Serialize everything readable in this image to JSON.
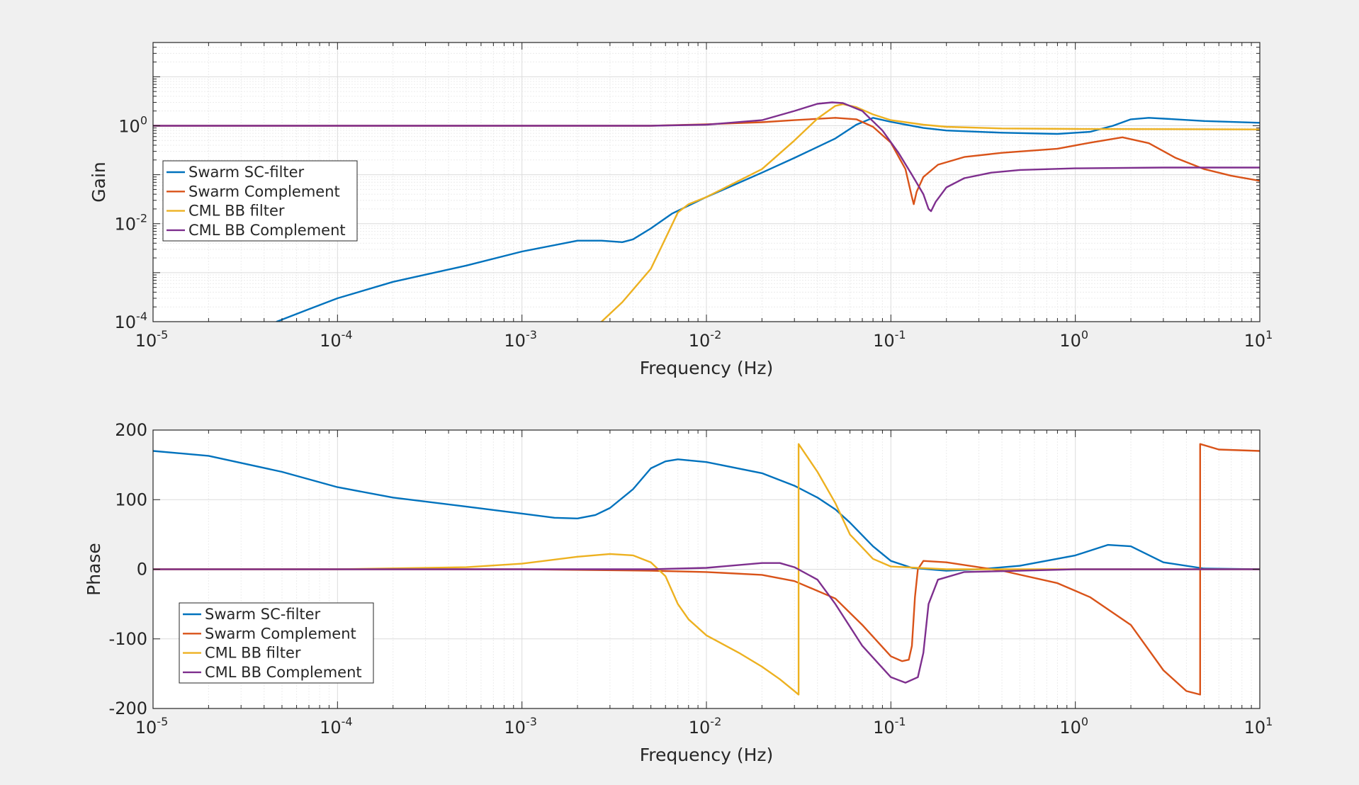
{
  "figure": {
    "background": "#f0f0f0"
  },
  "chart_data": [
    {
      "type": "line",
      "name": "gain",
      "xscale": "log",
      "yscale": "log",
      "xlim": [
        1e-05,
        10
      ],
      "ylim": [
        0.0001,
        50
      ],
      "xlabel": "Frequency (Hz)",
      "ylabel": "Gain",
      "xticks": [
        {
          "base": "10",
          "exp": "-5"
        },
        {
          "base": "10",
          "exp": "-4"
        },
        {
          "base": "10",
          "exp": "-3"
        },
        {
          "base": "10",
          "exp": "-2"
        },
        {
          "base": "10",
          "exp": "-1"
        },
        {
          "base": "10",
          "exp": "0"
        },
        {
          "base": "10",
          "exp": "1"
        }
      ],
      "yticks": [
        {
          "value": 0.0001,
          "base": "10",
          "exp": "-4"
        },
        {
          "value": 0.01,
          "base": "10",
          "exp": "-2"
        },
        {
          "value": 1,
          "base": "10",
          "exp": "0"
        }
      ],
      "grid": true,
      "minor_grid": true,
      "legend": {
        "position": "middle-left"
      },
      "series": [
        {
          "name": "Swarm SC-filter",
          "color": "#0072bd",
          "points": [
            [
              4.68e-05,
              0.0001
            ],
            [
              7e-05,
              0.00018
            ],
            [
              0.0001,
              0.0003
            ],
            [
              0.0002,
              0.00065
            ],
            [
              0.0005,
              0.0014
            ],
            [
              0.001,
              0.0027
            ],
            [
              0.002,
              0.0045
            ],
            [
              0.0027,
              0.0045
            ],
            [
              0.0035,
              0.0042
            ],
            [
              0.004,
              0.0048
            ],
            [
              0.005,
              0.008
            ],
            [
              0.0065,
              0.016
            ],
            [
              0.01,
              0.035
            ],
            [
              0.02,
              0.11
            ],
            [
              0.03,
              0.22
            ],
            [
              0.05,
              0.55
            ],
            [
              0.065,
              1.05
            ],
            [
              0.08,
              1.45
            ],
            [
              0.1,
              1.2
            ],
            [
              0.15,
              0.9
            ],
            [
              0.2,
              0.8
            ],
            [
              0.4,
              0.72
            ],
            [
              0.8,
              0.68
            ],
            [
              1.2,
              0.75
            ],
            [
              1.6,
              1.0
            ],
            [
              2.0,
              1.35
            ],
            [
              2.5,
              1.45
            ],
            [
              3.5,
              1.35
            ],
            [
              5,
              1.25
            ],
            [
              10,
              1.15
            ]
          ]
        },
        {
          "name": "Swarm Complement",
          "color": "#d95319",
          "points": [
            [
              1e-05,
              1
            ],
            [
              0.001,
              1
            ],
            [
              0.005,
              1.0
            ],
            [
              0.01,
              1.07
            ],
            [
              0.02,
              1.18
            ],
            [
              0.03,
              1.3
            ],
            [
              0.05,
              1.45
            ],
            [
              0.065,
              1.35
            ],
            [
              0.08,
              0.95
            ],
            [
              0.1,
              0.45
            ],
            [
              0.12,
              0.13
            ],
            [
              0.13,
              0.035
            ],
            [
              0.133,
              0.025
            ],
            [
              0.138,
              0.045
            ],
            [
              0.15,
              0.09
            ],
            [
              0.18,
              0.16
            ],
            [
              0.25,
              0.23
            ],
            [
              0.4,
              0.28
            ],
            [
              0.8,
              0.34
            ],
            [
              1.2,
              0.45
            ],
            [
              1.8,
              0.58
            ],
            [
              2.5,
              0.44
            ],
            [
              3.5,
              0.22
            ],
            [
              5,
              0.13
            ],
            [
              7,
              0.095
            ],
            [
              10,
              0.075
            ]
          ]
        },
        {
          "name": "CML BB filter",
          "color": "#edb120",
          "points": [
            [
              0.0027,
              0.0001
            ],
            [
              0.0035,
              0.00025
            ],
            [
              0.005,
              0.0012
            ],
            [
              0.006,
              0.005
            ],
            [
              0.007,
              0.017
            ],
            [
              0.008,
              0.025
            ],
            [
              0.01,
              0.035
            ],
            [
              0.02,
              0.13
            ],
            [
              0.03,
              0.5
            ],
            [
              0.04,
              1.4
            ],
            [
              0.05,
              2.55
            ],
            [
              0.055,
              2.75
            ],
            [
              0.065,
              2.4
            ],
            [
              0.08,
              1.7
            ],
            [
              0.1,
              1.3
            ],
            [
              0.15,
              1.05
            ],
            [
              0.2,
              0.95
            ],
            [
              0.4,
              0.88
            ],
            [
              1,
              0.86
            ],
            [
              10,
              0.84
            ]
          ]
        },
        {
          "name": "CML BB Complement",
          "color": "#7e2f8e",
          "points": [
            [
              1e-05,
              1
            ],
            [
              0.001,
              1
            ],
            [
              0.005,
              1.0
            ],
            [
              0.01,
              1.05
            ],
            [
              0.02,
              1.3
            ],
            [
              0.03,
              2.0
            ],
            [
              0.04,
              2.8
            ],
            [
              0.048,
              3.0
            ],
            [
              0.055,
              2.9
            ],
            [
              0.07,
              2.0
            ],
            [
              0.09,
              0.8
            ],
            [
              0.11,
              0.28
            ],
            [
              0.13,
              0.1
            ],
            [
              0.15,
              0.04
            ],
            [
              0.16,
              0.02
            ],
            [
              0.165,
              0.018
            ],
            [
              0.175,
              0.028
            ],
            [
              0.2,
              0.055
            ],
            [
              0.25,
              0.085
            ],
            [
              0.35,
              0.11
            ],
            [
              0.5,
              0.125
            ],
            [
              1,
              0.135
            ],
            [
              3,
              0.14
            ],
            [
              10,
              0.14
            ]
          ]
        }
      ]
    },
    {
      "type": "line",
      "name": "phase",
      "xscale": "log",
      "xlim": [
        1e-05,
        10
      ],
      "ylim": [
        -200,
        200
      ],
      "xlabel": "Frequency (Hz)",
      "ylabel": "Phase",
      "xticks": [
        {
          "base": "10",
          "exp": "-5"
        },
        {
          "base": "10",
          "exp": "-4"
        },
        {
          "base": "10",
          "exp": "-3"
        },
        {
          "base": "10",
          "exp": "-2"
        },
        {
          "base": "10",
          "exp": "-1"
        },
        {
          "base": "10",
          "exp": "0"
        },
        {
          "base": "10",
          "exp": "1"
        }
      ],
      "yticks": [
        {
          "value": -200,
          "label": "-200"
        },
        {
          "value": -100,
          "label": "-100"
        },
        {
          "value": 0,
          "label": "0"
        },
        {
          "value": 100,
          "label": "100"
        },
        {
          "value": 200,
          "label": "200"
        }
      ],
      "grid": true,
      "minor_grid": false,
      "legend": {
        "position": "bottom-left"
      },
      "series": [
        {
          "name": "Swarm SC-filter",
          "color": "#0072bd",
          "points": [
            [
              1e-05,
              170
            ],
            [
              2e-05,
              163
            ],
            [
              5e-05,
              140
            ],
            [
              0.0001,
              118
            ],
            [
              0.0002,
              103
            ],
            [
              0.0005,
              90
            ],
            [
              0.001,
              80
            ],
            [
              0.0015,
              74
            ],
            [
              0.002,
              73
            ],
            [
              0.0025,
              78
            ],
            [
              0.003,
              88
            ],
            [
              0.004,
              115
            ],
            [
              0.005,
              145
            ],
            [
              0.006,
              155
            ],
            [
              0.007,
              158
            ],
            [
              0.01,
              154
            ],
            [
              0.02,
              138
            ],
            [
              0.03,
              120
            ],
            [
              0.04,
              103
            ],
            [
              0.05,
              86
            ],
            [
              0.06,
              67
            ],
            [
              0.08,
              33
            ],
            [
              0.1,
              12
            ],
            [
              0.13,
              2
            ],
            [
              0.2,
              -2
            ],
            [
              0.3,
              0
            ],
            [
              0.5,
              5
            ],
            [
              1,
              20
            ],
            [
              1.5,
              35
            ],
            [
              2,
              33
            ],
            [
              3,
              10
            ],
            [
              5,
              1
            ],
            [
              10,
              0
            ]
          ]
        },
        {
          "name": "Swarm Complement",
          "color": "#d95319",
          "points": [
            [
              1e-05,
              0
            ],
            [
              0.001,
              0
            ],
            [
              0.005,
              -2
            ],
            [
              0.01,
              -4
            ],
            [
              0.02,
              -8
            ],
            [
              0.03,
              -17
            ],
            [
              0.05,
              -42
            ],
            [
              0.07,
              -80
            ],
            [
              0.1,
              -125
            ],
            [
              0.115,
              -132
            ],
            [
              0.125,
              -130
            ],
            [
              0.13,
              -110
            ],
            [
              0.135,
              -40
            ],
            [
              0.14,
              0
            ],
            [
              0.15,
              12
            ],
            [
              0.2,
              10
            ],
            [
              0.4,
              -2
            ],
            [
              0.8,
              -20
            ],
            [
              1.2,
              -40
            ],
            [
              2,
              -80
            ],
            [
              3,
              -145
            ],
            [
              4,
              -175
            ],
            [
              4.75,
              -180
            ],
            [
              4.75,
              180
            ],
            [
              6,
              172
            ],
            [
              10,
              170
            ]
          ]
        },
        {
          "name": "CML BB filter",
          "color": "#edb120",
          "points": [
            [
              1e-05,
              0
            ],
            [
              0.0001,
              0
            ],
            [
              0.0005,
              3
            ],
            [
              0.001,
              8
            ],
            [
              0.002,
              18
            ],
            [
              0.003,
              22
            ],
            [
              0.004,
              20
            ],
            [
              0.005,
              10
            ],
            [
              0.006,
              -10
            ],
            [
              0.007,
              -50
            ],
            [
              0.008,
              -72
            ],
            [
              0.01,
              -95
            ],
            [
              0.015,
              -120
            ],
            [
              0.02,
              -140
            ],
            [
              0.025,
              -158
            ],
            [
              0.03,
              -175
            ],
            [
              0.0316,
              -180
            ],
            [
              0.0316,
              180
            ],
            [
              0.04,
              140
            ],
            [
              0.05,
              95
            ],
            [
              0.06,
              50
            ],
            [
              0.08,
              15
            ],
            [
              0.1,
              4
            ],
            [
              0.2,
              0
            ],
            [
              10,
              0
            ]
          ]
        },
        {
          "name": "CML BB Complement",
          "color": "#7e2f8e",
          "points": [
            [
              1e-05,
              0
            ],
            [
              0.001,
              0
            ],
            [
              0.005,
              0
            ],
            [
              0.01,
              2
            ],
            [
              0.02,
              9
            ],
            [
              0.025,
              9
            ],
            [
              0.03,
              3
            ],
            [
              0.04,
              -15
            ],
            [
              0.05,
              -50
            ],
            [
              0.07,
              -110
            ],
            [
              0.1,
              -155
            ],
            [
              0.12,
              -163
            ],
            [
              0.14,
              -155
            ],
            [
              0.15,
              -120
            ],
            [
              0.16,
              -50
            ],
            [
              0.18,
              -15
            ],
            [
              0.25,
              -4
            ],
            [
              0.5,
              -2
            ],
            [
              1,
              0
            ],
            [
              10,
              0
            ]
          ]
        }
      ]
    }
  ]
}
